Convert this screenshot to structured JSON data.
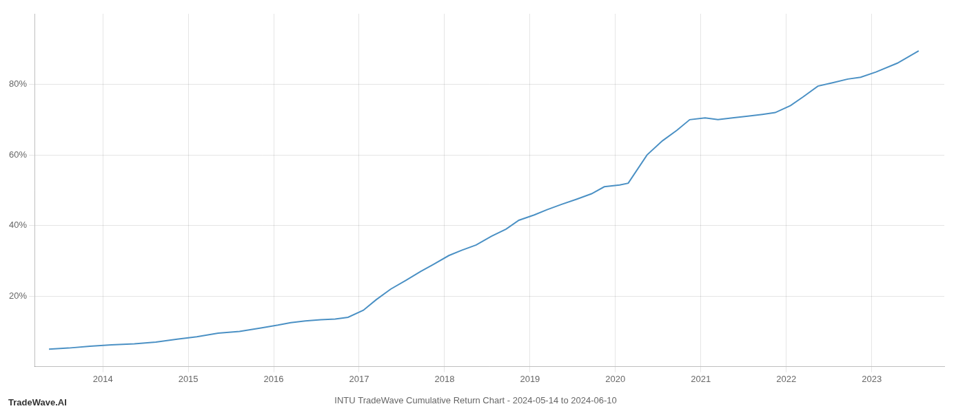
{
  "chart_data": {
    "type": "line",
    "title": "INTU TradeWave Cumulative Return Chart - 2024-05-14 to 2024-06-10",
    "annotations": [
      {
        "text": "TradeWave.AI"
      }
    ],
    "x": [
      2013.37,
      2013.6,
      2013.85,
      2014.1,
      2014.37,
      2014.62,
      2014.87,
      2015.1,
      2015.35,
      2015.6,
      2015.85,
      2016.05,
      2016.2,
      2016.37,
      2016.55,
      2016.72,
      2016.87,
      2017.05,
      2017.2,
      2017.37,
      2017.55,
      2017.72,
      2017.87,
      2018.05,
      2018.2,
      2018.37,
      2018.55,
      2018.72,
      2018.87,
      2019.05,
      2019.2,
      2019.37,
      2019.55,
      2019.72,
      2019.87,
      2020.05,
      2020.15,
      2020.37,
      2020.55,
      2020.72,
      2020.87,
      2021.05,
      2021.2,
      2021.37,
      2021.55,
      2021.72,
      2021.87,
      2022.05,
      2022.2,
      2022.37,
      2022.55,
      2022.72,
      2022.87,
      2023.05,
      2023.3,
      2023.55
    ],
    "values": [
      5.0,
      5.3,
      5.8,
      6.2,
      6.5,
      7.0,
      7.8,
      8.5,
      9.5,
      10.0,
      11.0,
      11.8,
      12.5,
      13.0,
      13.3,
      13.5,
      14.0,
      16.0,
      19.0,
      22.0,
      24.5,
      27.0,
      29.0,
      31.5,
      33.0,
      34.5,
      37.0,
      39.0,
      41.5,
      43.0,
      44.5,
      46.0,
      47.5,
      49.0,
      51.0,
      51.5,
      52.0,
      60.0,
      64.0,
      67.0,
      70.0,
      70.5,
      70.0,
      70.5,
      71.0,
      71.5,
      72.0,
      74.0,
      76.5,
      79.5,
      80.5,
      81.5,
      82.0,
      83.5,
      86.0,
      89.5
    ],
    "color": "#4a90c4",
    "xlim": [
      2013.2,
      2023.85
    ],
    "xticks": [
      2014,
      2015,
      2016,
      2017,
      2018,
      2019,
      2020,
      2021,
      2022,
      2023
    ],
    "ylim": [
      0,
      100
    ],
    "yticks": [
      {
        "value": 20,
        "label": "20%"
      },
      {
        "value": 40,
        "label": "40%"
      },
      {
        "value": 60,
        "label": "60%"
      },
      {
        "value": 80,
        "label": "80%"
      }
    ],
    "grid": true
  }
}
